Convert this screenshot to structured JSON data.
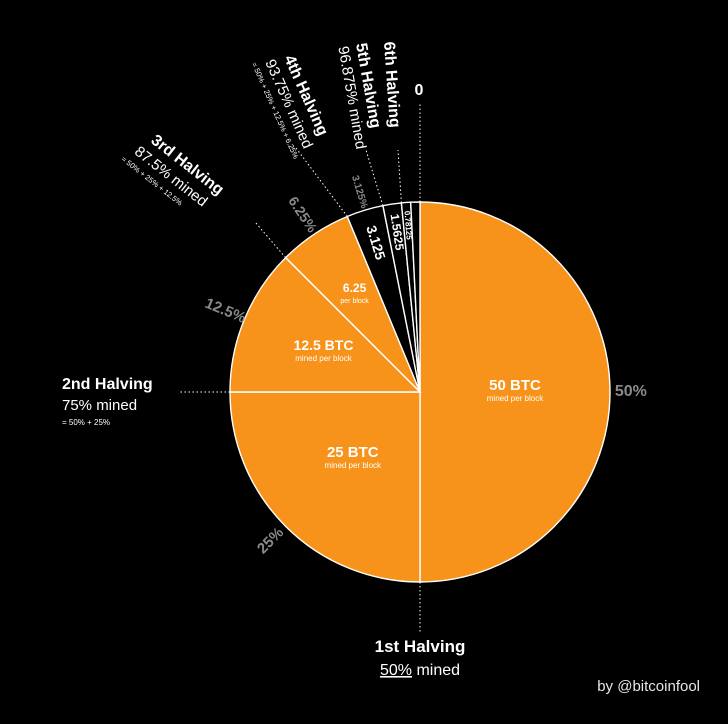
{
  "chart_data": {
    "type": "pie",
    "title": "",
    "slices": [
      {
        "value": 50,
        "percent_label": "50%",
        "label": "50 BTC",
        "sublabel": "mined per block",
        "color": "#f7931a"
      },
      {
        "value": 25,
        "percent_label": "25%",
        "label": "25 BTC",
        "sublabel": "mined per block",
        "color": "#f7931a"
      },
      {
        "value": 12.5,
        "percent_label": "12.5%",
        "label": "12.5 BTC",
        "sublabel": "mined per block",
        "color": "#f7931a"
      },
      {
        "value": 6.25,
        "percent_label": "6.25%",
        "label": "6.25",
        "sublabel": "per block",
        "color": "#f7931a"
      },
      {
        "value": 3.125,
        "percent_label": "3.125%",
        "label": "3.125",
        "sublabel": "",
        "color": "#000000"
      },
      {
        "value": 1.5625,
        "percent_label": "",
        "label": "1.5625",
        "sublabel": "",
        "color": "#000000"
      },
      {
        "value": 0.78125,
        "percent_label": "",
        "label": "0.78125",
        "sublabel": "",
        "color": "#000000"
      },
      {
        "value": 0.78125,
        "percent_label": "",
        "label": "",
        "sublabel": "",
        "color": "#000000"
      }
    ],
    "annotations": [
      {
        "title": "1st Halving",
        "pct": "50%",
        "rest": " mined",
        "sum": ""
      },
      {
        "title": "2nd Halving",
        "line2": "75% mined",
        "sum": "= 50% + 25%"
      },
      {
        "title": "3rd Halving",
        "line2": "87.5% mined",
        "sum": "= 50% + 25% + 12.5%"
      },
      {
        "title": "4th Halving",
        "line2": "93.75% mined",
        "sum": "= 50% + 25% + 12.5% + 6.25%"
      },
      {
        "title": "5th Halving",
        "line2": "96.875% mined",
        "sum": ""
      },
      {
        "title": "6th Halving",
        "line2": "",
        "sum": ""
      },
      {
        "title": "0",
        "line2": "",
        "sum": ""
      }
    ],
    "legend": "none",
    "grid": false
  },
  "credit": "by @bitcoinfool",
  "colors": {
    "orange": "#f7931a",
    "background": "#000000",
    "stroke": "#ffffff",
    "muted": "#8a8a8a"
  }
}
